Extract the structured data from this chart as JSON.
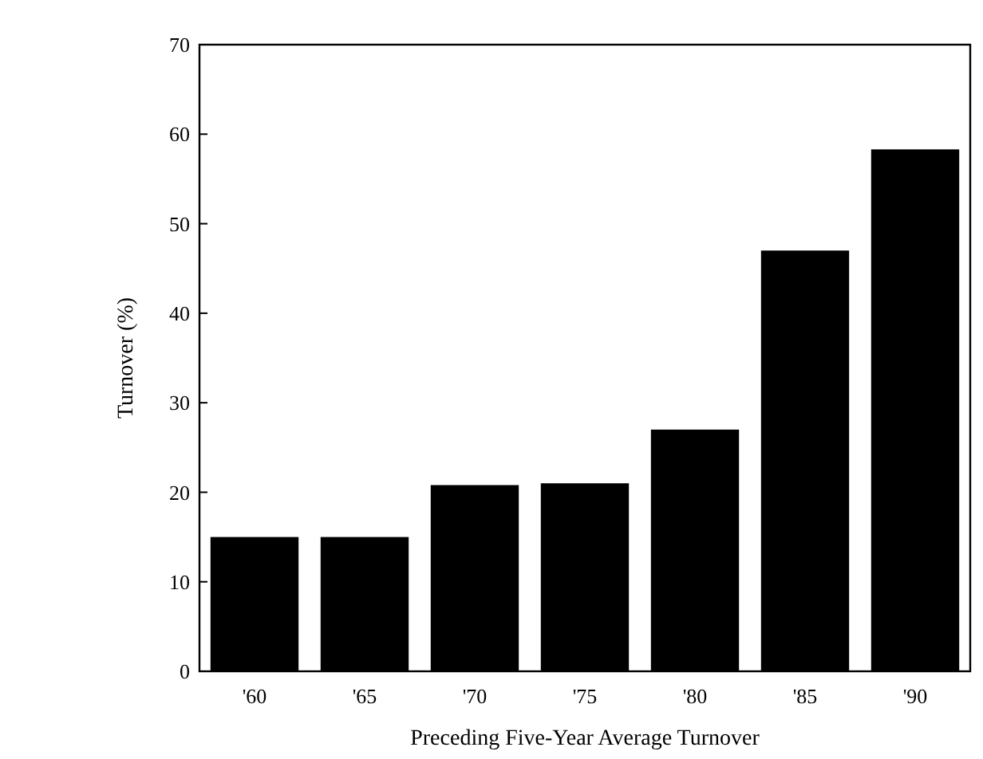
{
  "chart_data": {
    "type": "bar",
    "xlabel": "Preceding Five-Year Average Turnover",
    "ylabel": "Turnover (%)",
    "categories": [
      "'60",
      "'65",
      "'70",
      "'75",
      "'80",
      "'85",
      "'90"
    ],
    "values": [
      15,
      15,
      20.8,
      21,
      27,
      47,
      58.3
    ],
    "color": "#000000",
    "ylim": [
      0,
      70
    ],
    "yticks": [
      0,
      10,
      20,
      30,
      40,
      50,
      60,
      70
    ],
    "grid": false
  }
}
